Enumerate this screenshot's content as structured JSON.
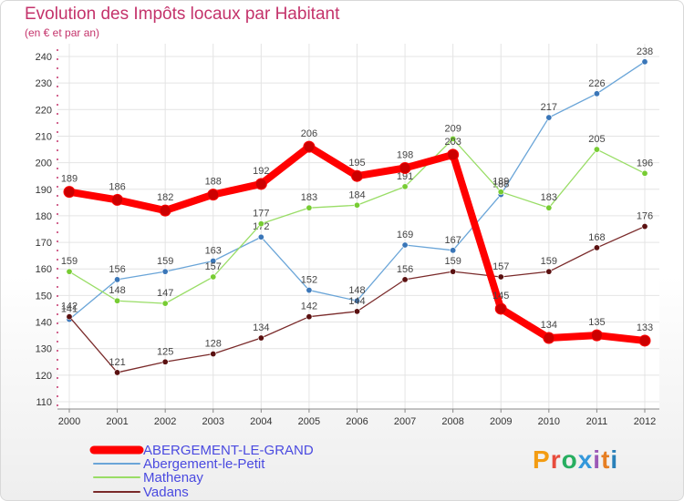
{
  "title": "Evolution des Impôts locaux par Habitant",
  "subtitle": "(en € et par an)",
  "logo": {
    "text": "Proxiti",
    "colors": [
      "#f39c12",
      "#e74c3c",
      "#27ae60",
      "#3498db",
      "#9b59b6",
      "#e67e22",
      "#2980b9"
    ]
  },
  "chart_data": {
    "type": "line",
    "title": "Evolution des Impôts locaux par Habitant",
    "ylabel": "(en € et par an)",
    "x": [
      2000,
      2001,
      2002,
      2003,
      2004,
      2005,
      2006,
      2007,
      2008,
      2009,
      2010,
      2011,
      2012
    ],
    "x_labels": [
      "2000",
      "2001",
      "2002",
      "2003",
      "2004",
      "2005",
      "2006",
      "2007",
      "2008",
      "2009",
      "2010",
      "2011",
      "2012"
    ],
    "ylim": [
      110,
      240
    ],
    "yticks": [
      110,
      120,
      130,
      140,
      150,
      160,
      170,
      180,
      190,
      200,
      210,
      220,
      230,
      240
    ],
    "grid": true,
    "legend_position": "bottom-left",
    "series": [
      {
        "name": "ABERGEMENT-LE-GRAND",
        "color": "#ff0000",
        "marker": "#cc0000",
        "width": "thick",
        "values": [
          189,
          186,
          182,
          188,
          192,
          206,
          195,
          198,
          203,
          145,
          134,
          135,
          133
        ],
        "labels": [
          "189",
          "186",
          "182",
          "188",
          "192",
          "206",
          "195",
          "198",
          "203",
          "145",
          "134",
          "135",
          "133"
        ]
      },
      {
        "name": "Abergement-le-Petit",
        "color": "#6aa5d8",
        "marker": "#3a76b8",
        "width": "thin",
        "values": [
          141,
          156,
          159,
          163,
          172,
          152,
          148,
          169,
          167,
          188,
          217,
          226,
          238
        ],
        "labels": [
          "141",
          "156",
          "159",
          "163",
          "172",
          "152",
          "148",
          "169",
          "167",
          "188",
          "217",
          "226",
          "238"
        ]
      },
      {
        "name": "Mathenay",
        "color": "#99dd66",
        "marker": "#77cc33",
        "width": "thin",
        "values": [
          159,
          148,
          147,
          157,
          177,
          183,
          184,
          191,
          209,
          189,
          183,
          205,
          196
        ],
        "labels": [
          "159",
          "148",
          "147",
          "157",
          "177",
          "183",
          "184",
          "191",
          "209",
          "189",
          "183",
          "205",
          "196"
        ]
      },
      {
        "name": "Vadans",
        "color": "#7a2a2a",
        "marker": "#5a1010",
        "width": "thin",
        "values": [
          142,
          121,
          125,
          128,
          134,
          142,
          144,
          156,
          159,
          157,
          159,
          168,
          176
        ],
        "labels": [
          "142",
          "121",
          "125",
          "128",
          "134",
          "142",
          "144",
          "156",
          "159",
          "157",
          "159",
          "168",
          "176"
        ]
      }
    ]
  }
}
